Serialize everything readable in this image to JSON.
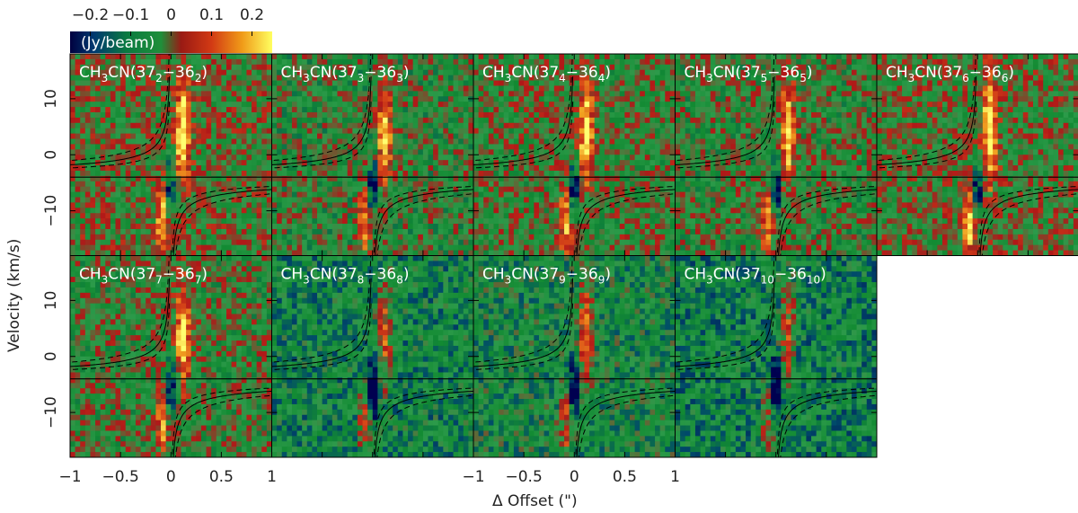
{
  "colorbar": {
    "label": "(Jy/beam)",
    "ticks": [
      "−0.2",
      "−0.1",
      "0",
      "0.1",
      "0.2"
    ],
    "range": [
      -0.25,
      0.25
    ]
  },
  "axes": {
    "xlabel": "Δ Offset (\")",
    "ylabel": "Velocity (km/s)",
    "xlim": [
      -1,
      1
    ],
    "ylim": [
      -18,
      18
    ],
    "xticks": [
      "−1",
      "−0.5",
      "0",
      "0.5",
      "1"
    ],
    "yticks": [
      "10",
      "0",
      "−10"
    ]
  },
  "chart_data": {
    "type": "heatmap",
    "description_level": "position-velocity diagrams",
    "x_unit": "arcsec",
    "y_unit": "km/s",
    "reference_velocity": -4,
    "panels": [
      {
        "mol": "CH",
        "sub3": "3",
        "cn": "CN(37",
        "ku": "2",
        "dash": "−36",
        "kl": "2",
        "close": ")",
        "brightness": 0.8
      },
      {
        "mol": "CH",
        "sub3": "3",
        "cn": "CN(37",
        "ku": "3",
        "dash": "−36",
        "kl": "3",
        "close": ")",
        "brightness": 0.62
      },
      {
        "mol": "CH",
        "sub3": "3",
        "cn": "CN(37",
        "ku": "4",
        "dash": "−36",
        "kl": "4",
        "close": ")",
        "brightness": 0.72
      },
      {
        "mol": "CH",
        "sub3": "3",
        "cn": "CN(37",
        "ku": "5",
        "dash": "−36",
        "kl": "5",
        "close": ")",
        "brightness": 0.66
      },
      {
        "mol": "CH",
        "sub3": "3",
        "cn": "CN(37",
        "ku": "6",
        "dash": "−36",
        "kl": "6",
        "close": ")",
        "brightness": 0.78
      },
      {
        "mol": "CH",
        "sub3": "3",
        "cn": "CN(37",
        "ku": "7",
        "dash": "−36",
        "kl": "7",
        "close": ")",
        "brightness": 0.68
      },
      {
        "mol": "CH",
        "sub3": "3",
        "cn": "CN(37",
        "ku": "8",
        "dash": "−36",
        "kl": "8",
        "close": ")",
        "brightness": 0.3
      },
      {
        "mol": "CH",
        "sub3": "3",
        "cn": "CN(37",
        "ku": "9",
        "dash": "−36",
        "kl": "9",
        "close": ")",
        "brightness": 0.4
      },
      {
        "mol": "CH",
        "sub3": "3",
        "cn": "CN(37",
        "ku": "10",
        "dash": "−36",
        "kl": "10",
        "close": ")",
        "brightness": 0.25
      }
    ]
  },
  "colors": {
    "cmap": [
      "#000050",
      "#004a6a",
      "#128a32",
      "#2c9a4a",
      "#b01818",
      "#d84818",
      "#f0a020",
      "#ffff70"
    ]
  }
}
